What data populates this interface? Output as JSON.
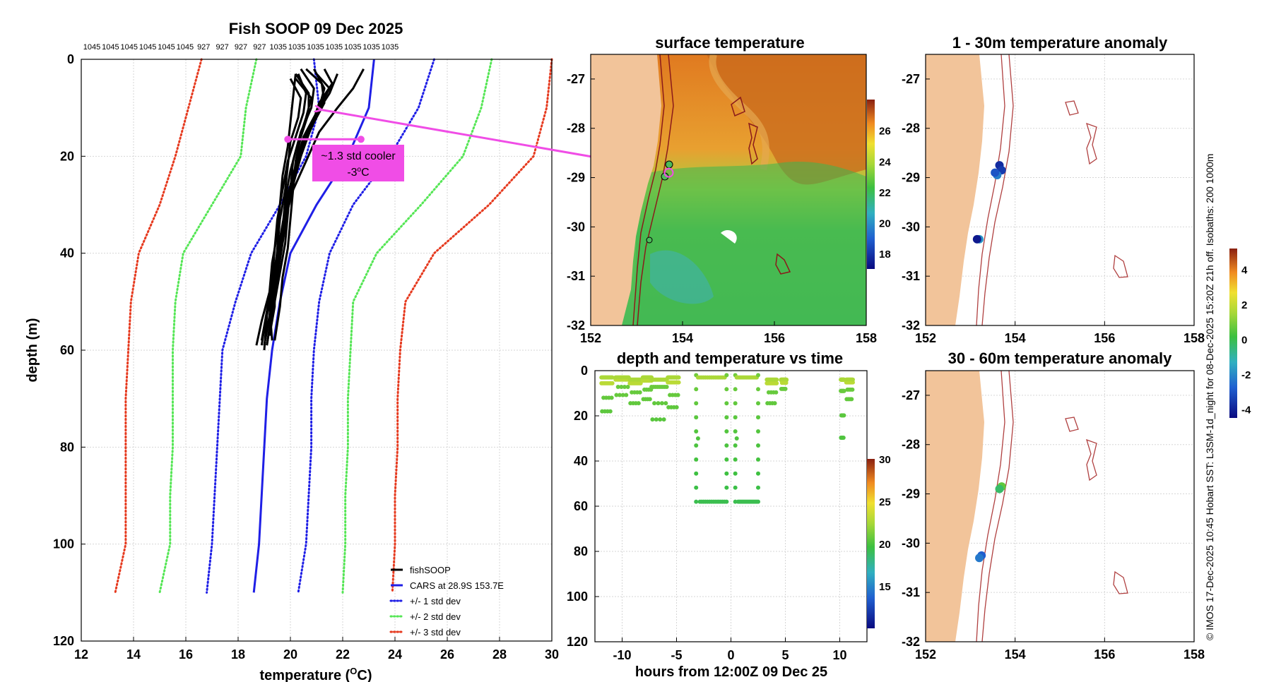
{
  "figure": {
    "credit": "© IMOS 17-Dec-2025 10:45 Hobart SST: L3SM-1d_night for 08-Dec-2025 15:20Z 21h off. Isobaths: 200  1000m"
  },
  "colors": {
    "land": "#f2c49a",
    "profile": "#000000",
    "cars": "#1f1fe6",
    "std1": "#1f1fe6",
    "std2": "#55e655",
    "std3": "#e63a1f",
    "annotation": "#f04de6",
    "isobath": "#b04040"
  },
  "chart_data": [
    {
      "type": "line",
      "id": "profile",
      "title": "Fish SOOP 09 Dec 2025",
      "xlabel": "temperature (°C)",
      "xlabel_main": "temperature (",
      "xlabel_sup": "O",
      "xlabel_tail": "C)",
      "ylabel": "depth (m)",
      "xlim": [
        12,
        30
      ],
      "ylim": [
        0,
        120
      ],
      "xticks": [
        12,
        14,
        16,
        18,
        20,
        22,
        24,
        26,
        28,
        30
      ],
      "yticks": [
        0,
        20,
        40,
        60,
        80,
        100,
        120
      ],
      "top_tick_labels": [
        "1045",
        "1045",
        "1045",
        "1045",
        "1045",
        "1045",
        "927",
        "927",
        "927",
        "927",
        "1035",
        "1035",
        "1035",
        "1035",
        "1035",
        "1035",
        "1035"
      ],
      "depths": [
        0,
        10,
        20,
        30,
        40,
        50,
        60,
        70,
        80,
        90,
        100,
        110
      ],
      "series": [
        {
          "name": "CARS at 28.9S 153.7E",
          "style": "solid",
          "color_key": "cars",
          "values": [
            23.2,
            23.0,
            22.2,
            21.0,
            20.0,
            19.6,
            19.3,
            19.1,
            19.0,
            18.9,
            18.8,
            18.6
          ]
        },
        {
          "name": "+/- 1 std dev",
          "style": "dotted",
          "color_key": "std1",
          "values": [
            25.5,
            24.9,
            23.8,
            22.4,
            21.5,
            21.1,
            20.9,
            20.8,
            20.8,
            20.7,
            20.6,
            20.3
          ]
        },
        {
          "name": "",
          "style": "dotted",
          "color_key": "std1",
          "values": [
            20.9,
            21.1,
            20.6,
            19.6,
            18.5,
            17.9,
            17.4,
            17.3,
            17.2,
            17.1,
            17.0,
            16.8
          ]
        },
        {
          "name": "+/- 2 std dev",
          "style": "dotted",
          "color_key": "std2",
          "values": [
            27.7,
            27.3,
            26.6,
            25.0,
            23.3,
            22.4,
            22.3,
            22.2,
            22.2,
            22.1,
            22.1,
            22.0
          ]
        },
        {
          "name": "",
          "style": "dotted",
          "color_key": "std2",
          "values": [
            18.7,
            18.3,
            18.1,
            17.0,
            15.9,
            15.6,
            15.5,
            15.5,
            15.5,
            15.4,
            15.4,
            15.0
          ]
        },
        {
          "name": "+/- 3 std dev",
          "style": "dotted",
          "color_key": "std3",
          "values": [
            30.0,
            29.8,
            29.3,
            27.6,
            25.5,
            24.4,
            24.2,
            24.1,
            24.1,
            24.0,
            24.0,
            23.9
          ]
        },
        {
          "name": "",
          "style": "dotted",
          "color_key": "std3",
          "values": [
            16.6,
            16.1,
            15.6,
            15.0,
            14.2,
            13.9,
            13.8,
            13.7,
            13.7,
            13.7,
            13.7,
            13.3
          ]
        }
      ],
      "fish_profiles": [
        {
          "t": [
            20.2,
            20.7,
            20.7,
            20.4,
            20.2,
            20.1,
            20.0,
            19.9,
            19.7,
            19.6,
            19.4
          ],
          "d": [
            3,
            7,
            11,
            16,
            21,
            27,
            33,
            39,
            45,
            51,
            58
          ]
        },
        {
          "t": [
            20.4,
            20.9,
            20.8,
            20.4,
            20.1,
            20.0,
            19.8,
            19.6,
            19.4,
            19.3,
            19.1
          ],
          "d": [
            2,
            6,
            10,
            15,
            21,
            27,
            34,
            40,
            46,
            52,
            59
          ]
        },
        {
          "t": [
            21.0,
            21.5,
            21.0,
            20.5,
            20.2,
            19.9,
            19.7,
            19.5,
            19.3,
            19.1,
            19.0
          ],
          "d": [
            3,
            6,
            11,
            16,
            22,
            28,
            34,
            40,
            46,
            53,
            60
          ]
        },
        {
          "t": [
            22.8,
            22.4,
            21.8,
            21.1,
            20.6,
            20.1,
            19.8,
            19.5,
            19.3,
            19.1,
            18.9
          ],
          "d": [
            2,
            6,
            10,
            15,
            21,
            27,
            33,
            40,
            46,
            52,
            59
          ]
        },
        {
          "t": [
            20.0,
            20.4,
            20.3,
            20.0,
            19.9,
            19.8,
            19.6,
            19.5,
            19.4,
            19.4,
            19.2
          ],
          "d": [
            4,
            8,
            12,
            17,
            22,
            27,
            33,
            39,
            45,
            51,
            57
          ]
        },
        {
          "t": [
            20.6,
            21.2,
            21.3,
            20.9,
            20.4,
            20.1,
            19.9,
            19.7,
            19.5,
            19.3,
            19.1
          ],
          "d": [
            2,
            5,
            9,
            13,
            19,
            25,
            31,
            38,
            45,
            52,
            59
          ]
        },
        {
          "t": [
            21.8,
            21.5,
            20.9,
            20.5,
            20.2,
            20.0,
            19.8,
            19.6,
            19.4,
            19.2,
            19.0
          ],
          "d": [
            3,
            7,
            12,
            17,
            22,
            28,
            34,
            40,
            46,
            53,
            59
          ]
        },
        {
          "t": [
            20.2,
            20.1,
            20.0,
            19.9,
            19.7,
            19.6,
            19.5,
            19.3,
            19.2,
            18.9,
            18.7
          ],
          "d": [
            3,
            8,
            13,
            18,
            24,
            30,
            36,
            42,
            48,
            54,
            59
          ]
        },
        {
          "t": [
            20.9,
            21.3,
            21.1,
            20.6,
            20.3,
            20.0,
            19.9,
            19.8,
            19.6,
            19.4,
            19.2
          ],
          "d": [
            2,
            6,
            10,
            15,
            20,
            26,
            32,
            38,
            44,
            50,
            57
          ]
        },
        {
          "t": [
            20.3,
            20.6,
            20.5,
            20.2,
            19.9,
            19.7,
            19.5,
            19.4,
            19.3,
            19.1,
            18.9
          ],
          "d": [
            3,
            7,
            11,
            16,
            21,
            27,
            33,
            39,
            46,
            52,
            58
          ]
        },
        {
          "t": [
            21.3,
            21.6,
            21.1,
            20.8,
            20.4,
            20.1,
            19.8,
            19.6,
            19.4,
            19.2,
            19.3
          ],
          "d": [
            2,
            5,
            9,
            14,
            20,
            26,
            32,
            38,
            44,
            51,
            58
          ]
        },
        {
          "t": [
            20.2,
            20.8,
            20.6,
            20.3,
            20.0,
            19.8,
            19.7,
            19.5,
            19.3,
            19.2,
            19.0
          ],
          "d": [
            4,
            8,
            12,
            17,
            23,
            29,
            35,
            41,
            47,
            53,
            59
          ]
        }
      ],
      "legend": {
        "placement": "bottom-right",
        "items": [
          {
            "label": "fishSOOP",
            "color_key": "profile",
            "style": "solid"
          },
          {
            "label": "CARS at 28.9S 153.7E",
            "color_key": "cars",
            "style": "solid"
          },
          {
            "label": "+/- 1 std dev",
            "color_key": "std1",
            "style": "dotted"
          },
          {
            "label": "+/- 2 std dev",
            "color_key": "std2",
            "style": "dotted"
          },
          {
            "label": "+/- 3 std dev",
            "color_key": "std3",
            "style": "dotted"
          }
        ]
      },
      "annotation": {
        "line1": "~1.3 std cooler",
        "line2_main": "-3",
        "line2_sup": "o",
        "line2_tail": "C",
        "from_temp": 19.9,
        "to_temp": 22.7,
        "at_depth": 16.5
      }
    },
    {
      "type": "heatmap",
      "id": "sst",
      "title": "surface temperature",
      "xlim": [
        152,
        158
      ],
      "ylim": [
        -32,
        -26.5
      ],
      "xticks": [
        152,
        154,
        156,
        158
      ],
      "yticks": [
        -27,
        -28,
        -29,
        -30,
        -31,
        -32
      ],
      "colorbar": {
        "min": 17,
        "max": 28,
        "ticks": [
          18,
          20,
          22,
          24,
          26
        ]
      },
      "marker": {
        "lon": 153.7,
        "lat": -28.9
      }
    },
    {
      "type": "scatter",
      "id": "depthtime",
      "title": "depth and temperature vs time",
      "xlabel": "hours from 12:00Z 09 Dec 25",
      "xlim": [
        -12.5,
        12.5
      ],
      "ylim": [
        0,
        120
      ],
      "xticks": [
        -10,
        -5,
        0,
        5,
        10
      ],
      "yticks": [
        0,
        20,
        40,
        60,
        80,
        100,
        120
      ],
      "colorbar": {
        "min": 10,
        "max": 30,
        "ticks": [
          15,
          20,
          25,
          30
        ]
      },
      "segments": [
        {
          "t0": -11.9,
          "t1": -10.9,
          "d0": 2,
          "d1": 20
        },
        {
          "t0": -10.6,
          "t1": -9.4,
          "d0": 2,
          "d1": 12
        },
        {
          "t0": -9.3,
          "t1": -8.3,
          "d0": 3,
          "d1": 16
        },
        {
          "t0": -8.1,
          "t1": -7.3,
          "d0": 2,
          "d1": 14
        },
        {
          "t0": -7.3,
          "t1": -5.9,
          "d0": 3,
          "d1": 24
        },
        {
          "t0": -5.8,
          "t1": -4.8,
          "d0": 2,
          "d1": 18
        },
        {
          "t0": -3.2,
          "t1": -0.4,
          "d0": 2,
          "d1": 58
        },
        {
          "t0": 0.4,
          "t1": 2.5,
          "d0": 2,
          "d1": 58
        },
        {
          "t0": 3.3,
          "t1": 4.2,
          "d0": 3,
          "d1": 16
        },
        {
          "t0": 4.6,
          "t1": 5.1,
          "d0": 3,
          "d1": 9
        },
        {
          "t0": 10.1,
          "t1": 10.4,
          "d0": 3,
          "d1": 33
        },
        {
          "t0": 10.6,
          "t1": 11.2,
          "d0": 3,
          "d1": 14
        }
      ]
    },
    {
      "type": "scatter",
      "id": "anom1",
      "title": "1 - 30m temperature anomaly",
      "xlim": [
        152,
        158
      ],
      "ylim": [
        -32,
        -26.5
      ],
      "xticks": [
        152,
        154,
        156,
        158
      ],
      "yticks": [
        -27,
        -28,
        -29,
        -30,
        -31,
        -32
      ],
      "points": [
        {
          "lon": 153.65,
          "lat": -28.75,
          "v": -3.8
        },
        {
          "lon": 153.7,
          "lat": -28.85,
          "v": -3.5
        },
        {
          "lon": 153.6,
          "lat": -28.95,
          "v": -2.2
        },
        {
          "lon": 153.55,
          "lat": -28.9,
          "v": -3.0
        },
        {
          "lon": 153.2,
          "lat": -30.25,
          "v": -1.8
        },
        {
          "lon": 153.15,
          "lat": -30.25,
          "v": -4.2
        }
      ]
    },
    {
      "type": "scatter",
      "id": "anom2",
      "title": "30 - 60m temperature anomaly",
      "xlim": [
        152,
        158
      ],
      "ylim": [
        -32,
        -26.5
      ],
      "xticks": [
        152,
        154,
        156,
        158
      ],
      "yticks": [
        -27,
        -28,
        -29,
        -30,
        -31,
        -32
      ],
      "points": [
        {
          "lon": 153.7,
          "lat": -28.85,
          "v": 0.6
        },
        {
          "lon": 153.65,
          "lat": -28.9,
          "v": -0.3
        },
        {
          "lon": 153.25,
          "lat": -30.25,
          "v": -2.8
        },
        {
          "lon": 153.2,
          "lat": -30.3,
          "v": -2.3
        }
      ],
      "colorbar": {
        "min": -4.5,
        "max": 5.2,
        "ticks": [
          4,
          2,
          0,
          -2,
          -4
        ]
      }
    }
  ]
}
